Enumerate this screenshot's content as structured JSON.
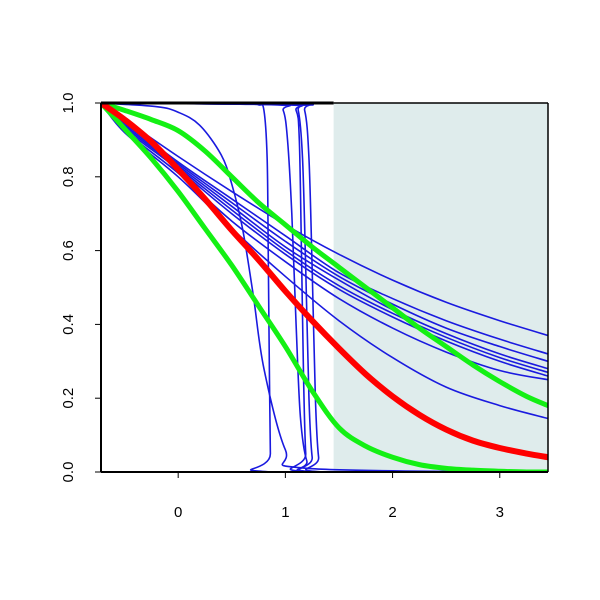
{
  "chart_data": {
    "type": "line",
    "title": "",
    "xlabel": "",
    "ylabel": "",
    "xlim": [
      -0.72,
      3.45
    ],
    "ylim": [
      0,
      1
    ],
    "x_ticks": [
      0,
      1,
      2,
      3
    ],
    "y_ticks": [
      0.0,
      0.2,
      0.4,
      0.6,
      0.8,
      1.0
    ],
    "x_tick_labels": [
      "0",
      "1",
      "2",
      "3"
    ],
    "y_tick_labels": [
      "0.0",
      "0.2",
      "0.4",
      "0.6",
      "0.8",
      "1.0"
    ],
    "grid": false,
    "legend": "none",
    "shaded_region": {
      "x": [
        1.45,
        3.45
      ],
      "color": "#dfecec"
    },
    "top_bar": {
      "x": [
        -0.72,
        1.45
      ],
      "y": 1.0
    },
    "colors": {
      "blue": "#1a1adf",
      "red": "#ff0000",
      "green": "#14f014"
    },
    "series": [
      {
        "color": "#1a1adf",
        "width": 1.6,
        "x": [
          -0.72,
          -0.5,
          0,
          0.5,
          1,
          1.5,
          2,
          2.5,
          3,
          3.45
        ],
        "y": [
          1.0,
          0.955,
          0.855,
          0.76,
          0.67,
          0.59,
          0.52,
          0.46,
          0.41,
          0.37
        ]
      },
      {
        "color": "#1a1adf",
        "width": 1.6,
        "x": [
          -0.72,
          -0.5,
          0,
          0.5,
          1,
          1.5,
          2,
          2.5,
          3,
          3.45
        ],
        "y": [
          1.0,
          0.95,
          0.84,
          0.74,
          0.64,
          0.54,
          0.47,
          0.41,
          0.36,
          0.32
        ]
      },
      {
        "color": "#1a1adf",
        "width": 1.6,
        "x": [
          -0.72,
          -0.5,
          0,
          0.5,
          1,
          1.5,
          2,
          2.5,
          3,
          3.45
        ],
        "y": [
          1.0,
          0.945,
          0.835,
          0.73,
          0.625,
          0.53,
          0.455,
          0.39,
          0.34,
          0.3
        ]
      },
      {
        "color": "#1a1adf",
        "width": 1.6,
        "x": [
          -0.72,
          -0.5,
          0,
          0.5,
          1,
          1.5,
          2,
          2.5,
          3,
          3.45
        ],
        "y": [
          1.0,
          0.94,
          0.83,
          0.72,
          0.61,
          0.52,
          0.44,
          0.375,
          0.32,
          0.28
        ]
      },
      {
        "color": "#1a1adf",
        "width": 1.6,
        "x": [
          -0.72,
          -0.5,
          0,
          0.5,
          1,
          1.5,
          2,
          2.5,
          3,
          3.45
        ],
        "y": [
          1.0,
          0.935,
          0.825,
          0.71,
          0.6,
          0.505,
          0.43,
          0.365,
          0.31,
          0.27
        ]
      },
      {
        "color": "#1a1adf",
        "width": 1.6,
        "x": [
          -0.72,
          -0.5,
          0,
          0.5,
          1,
          1.5,
          2,
          2.5,
          3,
          3.45
        ],
        "y": [
          1.0,
          0.93,
          0.82,
          0.7,
          0.59,
          0.495,
          0.42,
          0.355,
          0.3,
          0.26
        ]
      },
      {
        "color": "#1a1adf",
        "width": 1.6,
        "x": [
          -0.72,
          -0.5,
          0,
          0.5,
          1,
          1.5,
          2,
          2.5,
          3,
          3.45
        ],
        "y": [
          1.0,
          0.925,
          0.81,
          0.68,
          0.57,
          0.47,
          0.39,
          0.325,
          0.275,
          0.25
        ]
      },
      {
        "color": "#1a1adf",
        "width": 1.6,
        "x": [
          -0.72,
          -0.5,
          0,
          0.5,
          1,
          1.5,
          2,
          2.5,
          3,
          3.45
        ],
        "y": [
          1.0,
          0.92,
          0.8,
          0.66,
          0.53,
          0.41,
          0.31,
          0.23,
          0.18,
          0.145
        ]
      },
      {
        "color": "#1a1adf",
        "width": 1.6,
        "x": [
          -0.72,
          -0.2,
          0,
          0.2,
          0.4,
          0.5,
          0.6,
          0.7,
          0.8,
          1.0,
          1.2,
          3.45
        ],
        "y": [
          1.0,
          0.99,
          0.975,
          0.94,
          0.86,
          0.78,
          0.66,
          0.48,
          0.28,
          0.06,
          0.01,
          0.0
        ]
      },
      {
        "color": "#1a1adf",
        "width": 1.6,
        "x": [
          -0.72,
          0.6,
          0.75,
          0.8,
          0.83,
          0.84,
          0.85,
          0.86,
          0.87,
          3.45
        ],
        "y": [
          1.0,
          1.0,
          0.995,
          0.98,
          0.85,
          0.6,
          0.3,
          0.05,
          0.0,
          0.0
        ]
      },
      {
        "color": "#1a1adf",
        "width": 1.6,
        "x": [
          -0.72,
          0.9,
          0.98,
          1.02,
          1.06,
          1.1,
          1.14,
          1.2,
          1.3,
          3.45
        ],
        "y": [
          1.0,
          0.995,
          0.98,
          0.9,
          0.7,
          0.4,
          0.15,
          0.03,
          0.0,
          0.0
        ]
      },
      {
        "color": "#1a1adf",
        "width": 1.6,
        "x": [
          -0.72,
          1.0,
          1.1,
          1.13,
          1.15,
          1.17,
          1.19,
          1.22,
          3.45
        ],
        "y": [
          1.0,
          0.995,
          0.98,
          0.9,
          0.6,
          0.25,
          0.05,
          0.0,
          0.0
        ]
      },
      {
        "color": "#1a1adf",
        "width": 1.6,
        "x": [
          -0.72,
          1.05,
          1.12,
          1.16,
          1.19,
          1.22,
          1.25,
          1.3,
          3.45
        ],
        "y": [
          1.0,
          0.995,
          0.98,
          0.85,
          0.55,
          0.2,
          0.04,
          0.0,
          0.0
        ]
      },
      {
        "color": "#1a1adf",
        "width": 1.6,
        "x": [
          -0.72,
          1.1,
          1.18,
          1.22,
          1.25,
          1.28,
          1.31,
          1.36,
          3.45
        ],
        "y": [
          1.0,
          0.995,
          0.98,
          0.85,
          0.55,
          0.2,
          0.04,
          0.0,
          0.0
        ]
      },
      {
        "color": "#14f014",
        "width": 5,
        "x": [
          -0.72,
          -0.5,
          -0.25,
          0,
          0.25,
          0.5,
          0.75,
          1,
          1.25,
          1.5,
          1.75,
          2,
          2.25,
          2.5,
          2.75,
          3,
          3.25,
          3.45
        ],
        "y": [
          1.0,
          0.98,
          0.955,
          0.925,
          0.87,
          0.8,
          0.73,
          0.67,
          0.61,
          0.555,
          0.5,
          0.445,
          0.39,
          0.34,
          0.29,
          0.245,
          0.205,
          0.18
        ]
      },
      {
        "color": "#14f014",
        "width": 5,
        "x": [
          -0.72,
          -0.5,
          -0.25,
          0,
          0.25,
          0.5,
          0.75,
          1,
          1.25,
          1.5,
          1.75,
          2,
          2.25,
          2.5,
          2.75,
          3,
          3.25,
          3.45
        ],
        "y": [
          1.0,
          0.93,
          0.85,
          0.76,
          0.66,
          0.56,
          0.45,
          0.34,
          0.22,
          0.12,
          0.07,
          0.04,
          0.02,
          0.01,
          0.005,
          0.002,
          0.0,
          0.0
        ]
      },
      {
        "color": "#ff0000",
        "width": 6,
        "x": [
          -0.72,
          -0.5,
          -0.25,
          0,
          0.25,
          0.5,
          0.75,
          1,
          1.25,
          1.5,
          1.75,
          2,
          2.25,
          2.5,
          2.75,
          3,
          3.25,
          3.45
        ],
        "y": [
          1.0,
          0.955,
          0.895,
          0.82,
          0.74,
          0.655,
          0.575,
          0.49,
          0.41,
          0.335,
          0.265,
          0.205,
          0.155,
          0.115,
          0.085,
          0.065,
          0.05,
          0.04
        ]
      }
    ]
  }
}
